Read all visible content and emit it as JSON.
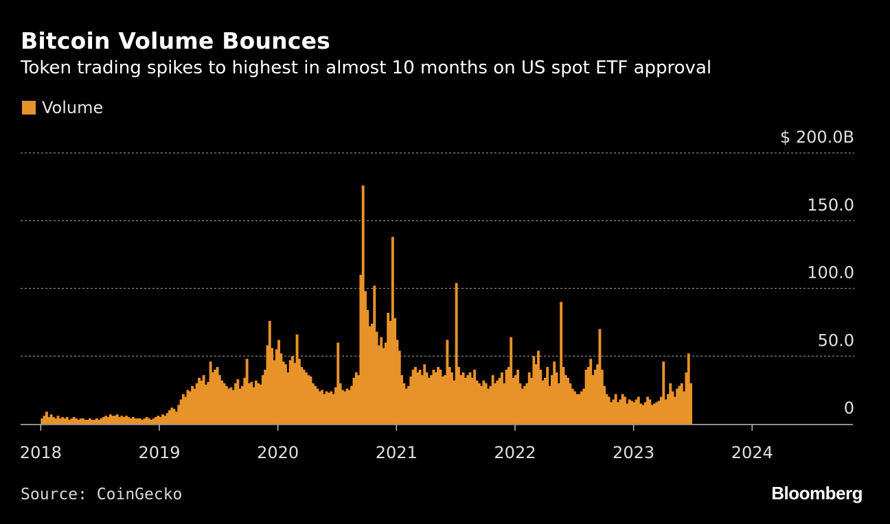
{
  "header": {
    "title": "Bitcoin Volume Bounces",
    "subtitle": "Token trading spikes to highest in almost 10 months on US spot ETF approval"
  },
  "legend": {
    "label": "Volume"
  },
  "footer": {
    "source": "Source: CoinGecko",
    "brand": "Bloomberg"
  },
  "colors": {
    "background": "#000000",
    "bar": "#e8922a",
    "grid": "#8c8c8c",
    "text": "#ffffff",
    "tick_text": "#e0e0e0"
  },
  "chart_data": {
    "type": "bar",
    "title": "Bitcoin Volume Bounces",
    "subtitle": "Token trading spikes to highest in almost 10 months on US spot ETF approval",
    "xlabel": "",
    "ylabel": "",
    "unit": "$ billions",
    "ylim": [
      0,
      200
    ],
    "xlim": [
      2017.83,
      2024.85
    ],
    "grid": true,
    "legend_position": "top-left",
    "y_ticks": [
      {
        "value": 0,
        "label": "0"
      },
      {
        "value": 50,
        "label": "50.0"
      },
      {
        "value": 100,
        "label": "100.0"
      },
      {
        "value": 150,
        "label": "150.0"
      },
      {
        "value": 200,
        "label": "$ 200.0B"
      }
    ],
    "x_ticks": [
      {
        "value": 2018,
        "label": "2018"
      },
      {
        "value": 2019,
        "label": "2019"
      },
      {
        "value": 2020,
        "label": "2020"
      },
      {
        "value": 2021,
        "label": "2021"
      },
      {
        "value": 2022,
        "label": "2022"
      },
      {
        "value": 2023,
        "label": "2023"
      },
      {
        "value": 2024,
        "label": "2024"
      }
    ],
    "series": [
      {
        "name": "Volume",
        "note": "weekly approximate daily volume in $B, read off the chart",
        "start_year": 2018.0,
        "step_years": 0.0192,
        "values": [
          4,
          6,
          9,
          5,
          7,
          5,
          4,
          6,
          4,
          5,
          4,
          5,
          3,
          4,
          5,
          4,
          3,
          4,
          4,
          3,
          3,
          4,
          3,
          3,
          4,
          3,
          4,
          5,
          6,
          5,
          7,
          6,
          6,
          7,
          5,
          6,
          5,
          6,
          5,
          4,
          5,
          4,
          4,
          4,
          3,
          4,
          5,
          4,
          3,
          4,
          5,
          6,
          5,
          7,
          6,
          8,
          10,
          12,
          11,
          9,
          14,
          18,
          22,
          20,
          25,
          24,
          28,
          26,
          30,
          34,
          32,
          36,
          29,
          31,
          46,
          38,
          40,
          42,
          36,
          32,
          30,
          28,
          26,
          27,
          25,
          30,
          33,
          26,
          28,
          34,
          48,
          30,
          31,
          27,
          32,
          30,
          29,
          36,
          40,
          58,
          76,
          56,
          47,
          55,
          62,
          52,
          46,
          44,
          38,
          47,
          50,
          45,
          66,
          48,
          42,
          40,
          38,
          36,
          35,
          30,
          28,
          26,
          24,
          25,
          22,
          24,
          23,
          24,
          22,
          27,
          60,
          30,
          25,
          24,
          26,
          25,
          28,
          34,
          38,
          36,
          110,
          176,
          98,
          84,
          72,
          74,
          102,
          68,
          58,
          64,
          56,
          60,
          82,
          76,
          138,
          78,
          62,
          54,
          36,
          30,
          26,
          28,
          35,
          40,
          42,
          38,
          40,
          36,
          44,
          38,
          34,
          36,
          40,
          38,
          42,
          40,
          35,
          36,
          62,
          42,
          38,
          32,
          104,
          42,
          36,
          38,
          34,
          36,
          38,
          34,
          40,
          32,
          30,
          28,
          32,
          30,
          26,
          28,
          36,
          30,
          32,
          34,
          38,
          30,
          40,
          42,
          64,
          34,
          36,
          40,
          30,
          26,
          28,
          30,
          38,
          34,
          50,
          44,
          54,
          40,
          32,
          34,
          42,
          28,
          36,
          46,
          38,
          30,
          90,
          42,
          36,
          34,
          30,
          26,
          24,
          22,
          22,
          24,
          26,
          40,
          42,
          48,
          36,
          40,
          44,
          70,
          40,
          28,
          22,
          20,
          16,
          18,
          22,
          16,
          18,
          22,
          20,
          15,
          18,
          17,
          16,
          18,
          20,
          15,
          14,
          16,
          20,
          18,
          14,
          15,
          16,
          17,
          20,
          46,
          18,
          22,
          30,
          24,
          20,
          26,
          28,
          30,
          24,
          38,
          52,
          30
        ]
      }
    ]
  }
}
